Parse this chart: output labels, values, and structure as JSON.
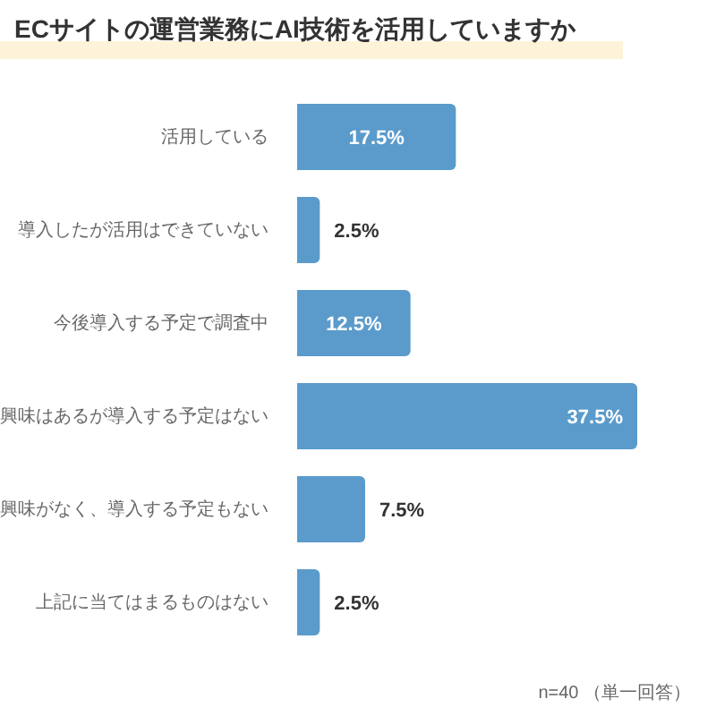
{
  "chart_data": {
    "type": "bar",
    "orientation": "horizontal",
    "title": "ECサイトの運営業務にAI技術を活用していますか",
    "categories": [
      "活用している",
      "導入したが活用はできていない",
      "今後導入する予定で調査中",
      "興味はあるが導入する予定はない",
      "興味がなく、導入する予定もない",
      "上記に当てはまるものはない"
    ],
    "values": [
      17.5,
      2.5,
      12.5,
      37.5,
      7.5,
      2.5
    ],
    "color": "#5a9bcb",
    "value_labels": [
      "17.5%",
      "2.5%",
      "12.5%",
      "37.5%",
      "7.5%",
      "2.5%"
    ],
    "annotations": [
      "n=40 （単一回答）"
    ]
  }
}
